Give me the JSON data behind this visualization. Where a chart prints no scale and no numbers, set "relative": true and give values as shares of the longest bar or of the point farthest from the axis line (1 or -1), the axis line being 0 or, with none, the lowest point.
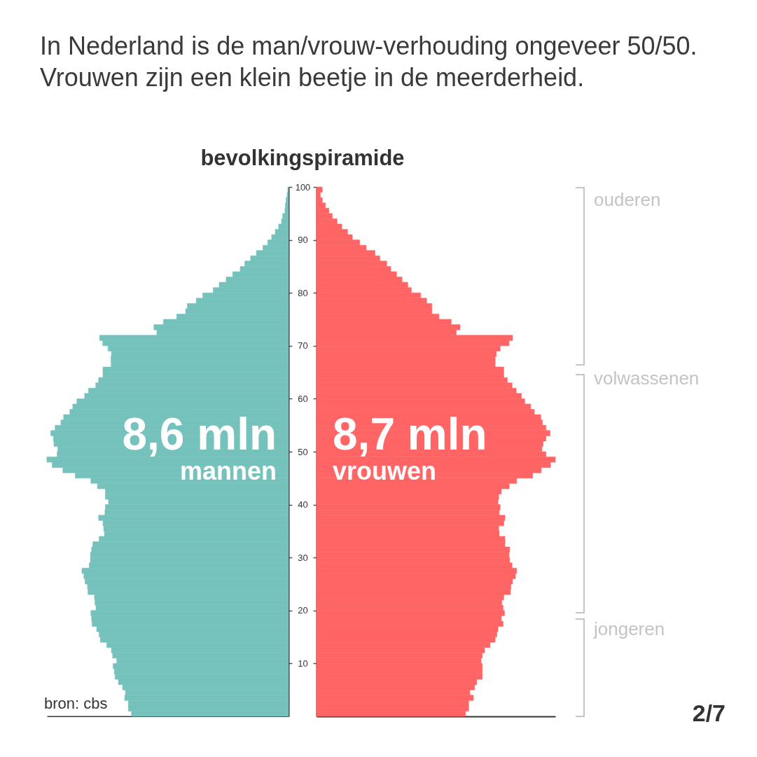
{
  "chart_data": [
    {
      "type": "bar",
      "orientation": "horizontal",
      "relative": true,
      "title": "In Nederland is de man/vrouw-verhouding ongeveer 50/50. Vrouwen zijn een klein beetje in de meerderheid.",
      "subtitle": "bevolkingspiramide",
      "x": [
        0.5,
        1.5,
        2.5,
        3.5,
        4.5,
        5.5,
        6.5,
        7.5,
        8.5,
        9.5,
        10.5,
        11.5,
        12.5,
        13.5,
        14.5,
        15.5,
        16.5,
        17.5,
        18.5,
        19.5,
        20.5,
        21.5,
        22.5,
        23.5,
        24.5,
        25.5,
        26.5,
        27.5,
        28.5,
        29.5,
        30.5,
        31.5,
        32.5,
        33.5,
        34.5,
        35.5,
        36.5,
        37.5,
        38.5,
        39.5,
        40.5,
        41.5,
        42.5,
        43.5,
        44.5,
        45.5,
        46.5,
        47.5,
        48.5,
        49.5,
        50.5,
        51.5,
        52.5,
        53.5,
        54.5,
        55.5,
        56.5,
        57.5,
        58.5,
        59.5,
        60.5,
        61.5,
        62.5,
        63.5,
        64.5,
        65.5,
        66.5,
        67.5,
        68.5,
        69.5,
        70.5,
        71.5,
        72.5,
        73.5,
        74.5,
        75.5,
        76.5,
        77.5,
        78.5,
        79.5,
        80.5,
        81.5,
        82.5,
        83.5,
        84.5,
        85.5,
        86.5,
        87.5,
        88.5,
        89.5,
        90.5,
        91.5,
        92.5,
        93.5,
        94.5,
        95.5,
        96.5,
        97.5,
        98.5,
        99.5
      ],
      "ylim": [
        0,
        100
      ],
      "yticks": [
        10,
        20,
        30,
        40,
        50,
        60,
        70,
        80,
        90,
        100
      ],
      "color": "#75c2bc",
      "values": [
        -0.65,
        -0.663,
        -0.663,
        -0.678,
        -0.675,
        -0.687,
        -0.704,
        -0.718,
        -0.721,
        -0.726,
        -0.711,
        -0.728,
        -0.733,
        -0.752,
        -0.779,
        -0.784,
        -0.794,
        -0.813,
        -0.815,
        -0.818,
        -0.797,
        -0.801,
        -0.803,
        -0.83,
        -0.832,
        -0.842,
        -0.847,
        -0.855,
        -0.825,
        -0.82,
        -0.82,
        -0.815,
        -0.81,
        -0.784,
        -0.762,
        -0.765,
        -0.768,
        -0.786,
        -0.76,
        -0.758,
        -0.745,
        -0.758,
        -0.758,
        -0.791,
        -0.818,
        -0.883,
        -0.934,
        -0.978,
        -1,
        -0.958,
        -0.955,
        -0.971,
        -0.973,
        -0.984,
        -0.966,
        -0.942,
        -0.931,
        -0.905,
        -0.893,
        -0.876,
        -0.844,
        -0.828,
        -0.798,
        -0.786,
        -0.768,
        -0.768,
        -0.734,
        -0.735,
        -0.733,
        -0.747,
        -0.769,
        -0.782,
        -0.545,
        -0.557,
        -0.518,
        -0.463,
        -0.426,
        -0.419,
        -0.382,
        -0.355,
        -0.312,
        -0.287,
        -0.258,
        -0.231,
        -0.2,
        -0.181,
        -0.157,
        -0.133,
        -0.106,
        -0.086,
        -0.07,
        -0.055,
        -0.041,
        -0.029,
        -0.024,
        -0.015,
        -0.013,
        -0.01,
        -0.006,
        -0.003
      ],
      "annotations": [
        "8,6 mln",
        "mannen",
        "bron: cbs"
      ]
    },
    {
      "type": "bar",
      "orientation": "horizontal",
      "relative": true,
      "x": [
        0.5,
        1.5,
        2.5,
        3.5,
        4.5,
        5.5,
        6.5,
        7.5,
        8.5,
        9.5,
        10.5,
        11.5,
        12.5,
        13.5,
        14.5,
        15.5,
        16.5,
        17.5,
        18.5,
        19.5,
        20.5,
        21.5,
        22.5,
        23.5,
        24.5,
        25.5,
        26.5,
        27.5,
        28.5,
        29.5,
        30.5,
        31.5,
        32.5,
        33.5,
        34.5,
        35.5,
        36.5,
        37.5,
        38.5,
        39.5,
        40.5,
        41.5,
        42.5,
        43.5,
        44.5,
        45.5,
        46.5,
        47.5,
        48.5,
        49.5,
        50.5,
        51.5,
        52.5,
        53.5,
        54.5,
        55.5,
        56.5,
        57.5,
        58.5,
        59.5,
        60.5,
        61.5,
        62.5,
        63.5,
        64.5,
        65.5,
        66.5,
        67.5,
        68.5,
        69.5,
        70.5,
        71.5,
        72.5,
        73.5,
        74.5,
        75.5,
        76.5,
        77.5,
        78.5,
        79.5,
        80.5,
        81.5,
        82.5,
        83.5,
        84.5,
        85.5,
        86.5,
        87.5,
        88.5,
        89.5,
        90.5,
        91.5,
        92.5,
        93.5,
        94.5,
        95.5,
        96.5,
        97.5,
        98.5,
        99.5
      ],
      "ylim": [
        0,
        100
      ],
      "yticks": [
        10,
        20,
        30,
        40,
        50,
        60,
        70,
        80,
        90,
        100
      ],
      "tick_labels": false,
      "color": "#ff6565",
      "values": [
        0.624,
        0.637,
        0.637,
        0.657,
        0.642,
        0.662,
        0.671,
        0.694,
        0.694,
        0.694,
        0.689,
        0.694,
        0.704,
        0.727,
        0.748,
        0.755,
        0.76,
        0.781,
        0.774,
        0.787,
        0.781,
        0.776,
        0.784,
        0.812,
        0.814,
        0.821,
        0.833,
        0.838,
        0.819,
        0.809,
        0.806,
        0.809,
        0.789,
        0.789,
        0.765,
        0.763,
        0.784,
        0.789,
        0.765,
        0.769,
        0.76,
        0.763,
        0.774,
        0.807,
        0.838,
        0.905,
        0.941,
        0.98,
        1,
        0.961,
        0.944,
        0.949,
        0.961,
        0.978,
        0.961,
        0.946,
        0.939,
        0.912,
        0.897,
        0.872,
        0.858,
        0.836,
        0.819,
        0.799,
        0.784,
        0.784,
        0.748,
        0.748,
        0.753,
        0.769,
        0.806,
        0.821,
        0.585,
        0.601,
        0.564,
        0.513,
        0.483,
        0.483,
        0.461,
        0.436,
        0.397,
        0.382,
        0.358,
        0.335,
        0.311,
        0.294,
        0.265,
        0.245,
        0.208,
        0.181,
        0.15,
        0.13,
        0.106,
        0.086,
        0.066,
        0.052,
        0.037,
        0.024,
        0.016,
        0.024
      ],
      "annotations": [
        "8,7 mln",
        "vrouwen",
        "ouderen",
        "volwassenen",
        "jongeren",
        "2/7"
      ]
    }
  ]
}
